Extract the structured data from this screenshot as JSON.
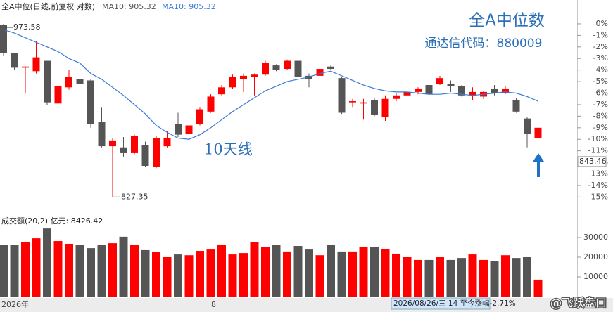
{
  "chart_data": [
    {
      "type": "candlestick",
      "title": "全A中位(日线,前复权 对数)",
      "indicator_labels": [
        {
          "text": "MA10: 905.32",
          "color": "#555555"
        },
        {
          "text": "MA10: 905.32",
          "color": "#3a7bd5"
        }
      ],
      "headline": "全A中位数",
      "subheadline": "通达信代码：880009",
      "annotation": "10天线",
      "price_labels": {
        "high": "973.58",
        "low": "827.35",
        "last": "843.46"
      },
      "x_axis_labels": [
        "2026年",
        "8"
      ],
      "status_text": "2026/08/26/三 14 至今涨幅-2.71%",
      "watermark": "@飞跃盘口",
      "up_color": "#ff0000",
      "down_color": "#555555",
      "open": [
        -0.1,
        -2.5,
        -3.8,
        -4.1,
        -3.2,
        -6.9,
        -5.5,
        -4.8,
        -4.9,
        -8.5,
        -10.6,
        -10.7,
        -11.2,
        -10.5,
        -12.4,
        -10.6,
        -8.7,
        -9.5,
        -8.7,
        -7.6,
        -6.1,
        -5.5,
        -4.8,
        -4.6,
        -4.4,
        -3.6,
        -3.9,
        -3.2,
        -4.5,
        -4.5,
        -3.7,
        -4.7,
        -6.8,
        -6.9,
        -6.6,
        -8.1,
        -6.5,
        -6.2,
        -5.9,
        -5.3,
        -5.2,
        -5.2,
        -5.4,
        -6.2,
        -6.3,
        -5.6,
        -6.0,
        -6.6,
        -8.2,
        -9.9
      ],
      "high": [
        0,
        -2.5,
        -3.7,
        -1.5,
        -3.2,
        -5.3,
        -4.0,
        -3.9,
        -4.8,
        -7.2,
        -9.9,
        -9.8,
        -9.6,
        -10.2,
        -9.7,
        -9.3,
        -7.7,
        -7.6,
        -7.2,
        -6.1,
        -5.3,
        -4.4,
        -4.3,
        -4.3,
        -3.2,
        -3.5,
        -3.1,
        -3.1,
        -4.3,
        -3.7,
        -3.6,
        -4.6,
        -6.5,
        -6.5,
        -6.4,
        -6.2,
        -6.0,
        -5.7,
        -5.5,
        -5.2,
        -4.5,
        -4.9,
        -5.3,
        -5.5,
        -5.8,
        -5.3,
        -5.4,
        -6.4,
        -8.1,
        -9.0
      ],
      "low": [
        -2.8,
        -4.0,
        -6.0,
        -4.3,
        -7.0,
        -7.7,
        -5.7,
        -5.4,
        -9.0,
        -10.7,
        -15.0,
        -11.5,
        -11.3,
        -12.4,
        -12.5,
        -10.7,
        -9.8,
        -9.6,
        -8.8,
        -7.7,
        -6.2,
        -5.6,
        -5.9,
        -6.2,
        -4.5,
        -4.1,
        -4.0,
        -4.7,
        -5.5,
        -5.5,
        -4.0,
        -7.8,
        -7.2,
        -8.3,
        -8.0,
        -8.4,
        -6.7,
        -6.3,
        -6.1,
        -6.2,
        -5.3,
        -5.9,
        -6.3,
        -6.6,
        -6.5,
        -6.2,
        -6.1,
        -7.7,
        -10.7,
        -10.1
      ],
      "close": [
        -2.5,
        -3.8,
        -3.7,
        -2.9,
        -6.8,
        -5.4,
        -4.6,
        -5.2,
        -8.7,
        -10.6,
        -10.1,
        -11.2,
        -9.7,
        -12.3,
        -9.9,
        -9.9,
        -9.6,
        -8.8,
        -7.4,
        -6.3,
        -5.5,
        -4.6,
        -4.5,
        -4.4,
        -3.4,
        -4.0,
        -3.2,
        -4.6,
        -4.8,
        -3.9,
        -3.9,
        -7.7,
        -6.7,
        -6.8,
        -7.9,
        -6.5,
        -6.2,
        -5.9,
        -5.6,
        -6.1,
        -4.7,
        -5.4,
        -6.2,
        -5.9,
        -5.9,
        -6.0,
        -5.6,
        -7.6,
        -9.5,
        -9.0
      ],
      "series": [
        {
          "name": "MA10",
          "color": "#3a7bd5",
          "values": [
            -0.5,
            -0.8,
            -1.2,
            -1.6,
            -2.0,
            -2.4,
            -3.0,
            -3.4,
            -4.3,
            -4.8,
            -5.5,
            -6.2,
            -7.0,
            -7.8,
            -8.8,
            -9.4,
            -9.9,
            -10.0,
            -9.6,
            -9.0,
            -8.3,
            -7.6,
            -7.0,
            -6.4,
            -5.8,
            -5.4,
            -5.0,
            -4.8,
            -4.6,
            -4.3,
            -4.1,
            -4.5,
            -4.9,
            -5.3,
            -5.6,
            -5.8,
            -5.9,
            -5.9,
            -6.0,
            -6.1,
            -6.1,
            -6.0,
            -6.1,
            -6.2,
            -6.1,
            -6.0,
            -5.9,
            -6.0,
            -6.3,
            -6.7
          ]
        }
      ],
      "ylim": [
        -16.5,
        0.85
      ],
      "yticks": [
        {
          "value": 0,
          "label": "0%"
        },
        {
          "value": -1,
          "label": "-1%"
        },
        {
          "value": -2,
          "label": "-2%"
        },
        {
          "value": -3,
          "label": "-3%"
        },
        {
          "value": -4,
          "label": "-4%"
        },
        {
          "value": -5,
          "label": "-5%"
        },
        {
          "value": -6,
          "label": "-6%"
        },
        {
          "value": -7,
          "label": "-7%"
        },
        {
          "value": -8,
          "label": "-8%"
        },
        {
          "value": -9,
          "label": "-9%"
        },
        {
          "value": -10,
          "label": "-10%"
        },
        {
          "value": -11,
          "label": "-11%"
        },
        {
          "value": -12,
          "label": "-12%"
        },
        {
          "value": -13,
          "label": "-13%"
        },
        {
          "value": -14,
          "label": "-14%"
        },
        {
          "value": -15,
          "label": "-15%"
        }
      ]
    },
    {
      "type": "bar",
      "title": "成交额(20,2) 亿元: 8426.42",
      "values": [
        26400,
        26400,
        27500,
        29600,
        34600,
        28200,
        26800,
        26400,
        24600,
        26100,
        27100,
        30400,
        26400,
        23600,
        22500,
        20000,
        21400,
        21000,
        23200,
        23900,
        26100,
        21400,
        22100,
        27500,
        25000,
        26100,
        22900,
        25700,
        23900,
        21000,
        26100,
        22900,
        22900,
        25000,
        25000,
        24300,
        21800,
        20000,
        18600,
        18600,
        20000,
        18600,
        19600,
        21400,
        18600,
        17900,
        21000,
        19600,
        20000,
        8600
      ],
      "ylim": [
        0,
        40000
      ],
      "yticks": [
        10000,
        20000,
        30000
      ]
    }
  ]
}
